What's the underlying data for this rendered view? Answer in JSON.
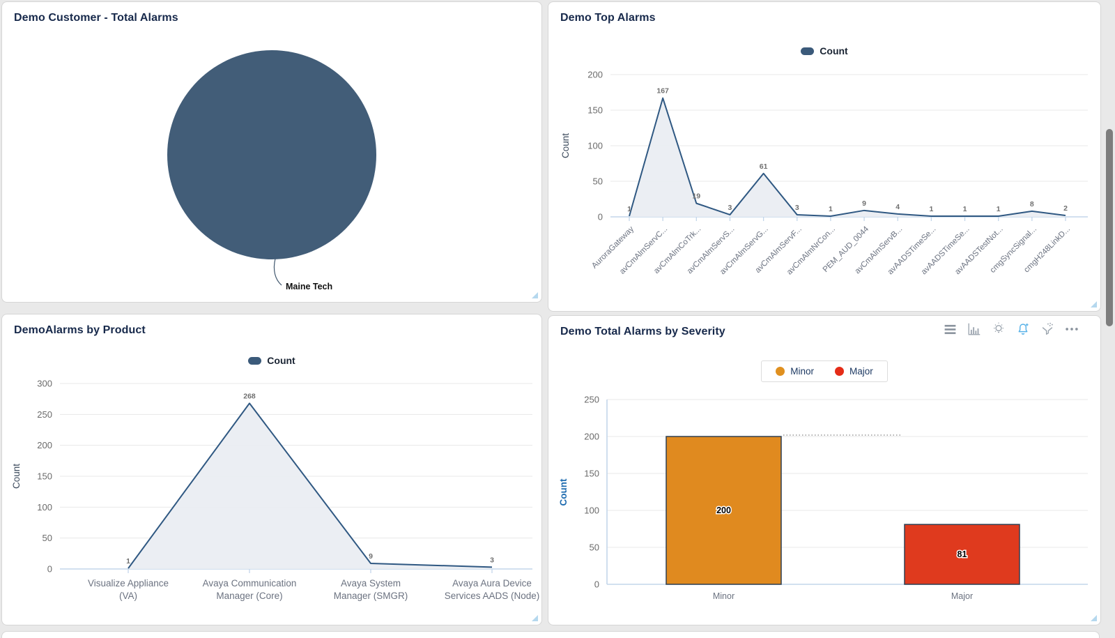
{
  "panels": {
    "total_alarms": {
      "title": "Demo Customer - Total Alarms"
    },
    "top_alarms": {
      "title": "Demo Top Alarms",
      "legend": {
        "label": "Count",
        "color": "#3b5a7a"
      }
    },
    "alarms_by_product": {
      "title": "DemoAlarms by Product",
      "legend": {
        "label": "Count",
        "color": "#3b5a7a"
      }
    },
    "alarms_by_severity": {
      "title": "Demo Total Alarms by Severity",
      "toolbar_icons": [
        "menu-icon",
        "bar-chart-icon",
        "lightbulb-icon",
        "bell-add-icon",
        "filter-icon",
        "more-options-icon"
      ],
      "legend": [
        {
          "label": "Minor",
          "color": "#e0901f"
        },
        {
          "label": "Major",
          "color": "#e52c17"
        }
      ]
    }
  },
  "chart_data": [
    {
      "id": "total-alarms-pie",
      "type": "pie",
      "title": "Demo Customer - Total Alarms",
      "slices": [
        {
          "label": "Maine Tech",
          "share": 1.0,
          "color": "#425d78"
        }
      ]
    },
    {
      "id": "top-alarms",
      "type": "area",
      "legend": [
        "Count"
      ],
      "legend_position": "top-center",
      "ylabel": "Count",
      "ylim": [
        0,
        200
      ],
      "yticks": [
        0,
        50,
        100,
        150,
        200
      ],
      "categories": [
        "AuroraGateway",
        "avCmAlmServC...",
        "avCmAlmCoTrk...",
        "avCmAlmServS...",
        "avCmAlmServG...",
        "avCmAlmServF...",
        "avCmAlmNrCon...",
        "PEM_AUD_0044",
        "avCmAlmServB...",
        "avAADSTimeSe...",
        "avAADSTimeSe...",
        "avAADSTestNot...",
        "cmgSyncSignal...",
        "cmgH248LinkD..."
      ],
      "values": [
        1,
        167,
        19,
        3,
        61,
        3,
        1,
        9,
        4,
        1,
        1,
        1,
        8,
        2
      ],
      "line_color": "#2f5882",
      "fill_color": "#e9edf2"
    },
    {
      "id": "alarms-by-product",
      "type": "area",
      "legend": [
        "Count"
      ],
      "legend_position": "top-center",
      "ylabel": "Count",
      "ylim": [
        0,
        300
      ],
      "yticks": [
        0,
        50,
        100,
        150,
        200,
        250,
        300
      ],
      "categories": [
        [
          "Visualize Appliance",
          "(VA)"
        ],
        [
          "Avaya Communication",
          "Manager (Core)"
        ],
        [
          "Avaya System",
          "Manager (SMGR)"
        ],
        [
          "Avaya Aura Device",
          "Services AADS (Node)"
        ]
      ],
      "values": [
        1,
        268,
        9,
        3
      ],
      "line_color": "#2f5882",
      "fill_color": "#e9edf2"
    },
    {
      "id": "alarms-by-severity",
      "type": "bar",
      "legend": [
        "Minor",
        "Major"
      ],
      "legend_position": "top-center",
      "ylabel": "Count",
      "ylim": [
        0,
        250
      ],
      "yticks": [
        0,
        50,
        100,
        150,
        200,
        250
      ],
      "categories": [
        "Minor",
        "Major"
      ],
      "values": [
        200,
        81
      ],
      "bar_colors": [
        "#e08a1f",
        "#df3a1e"
      ],
      "reference_line": 200
    }
  ]
}
